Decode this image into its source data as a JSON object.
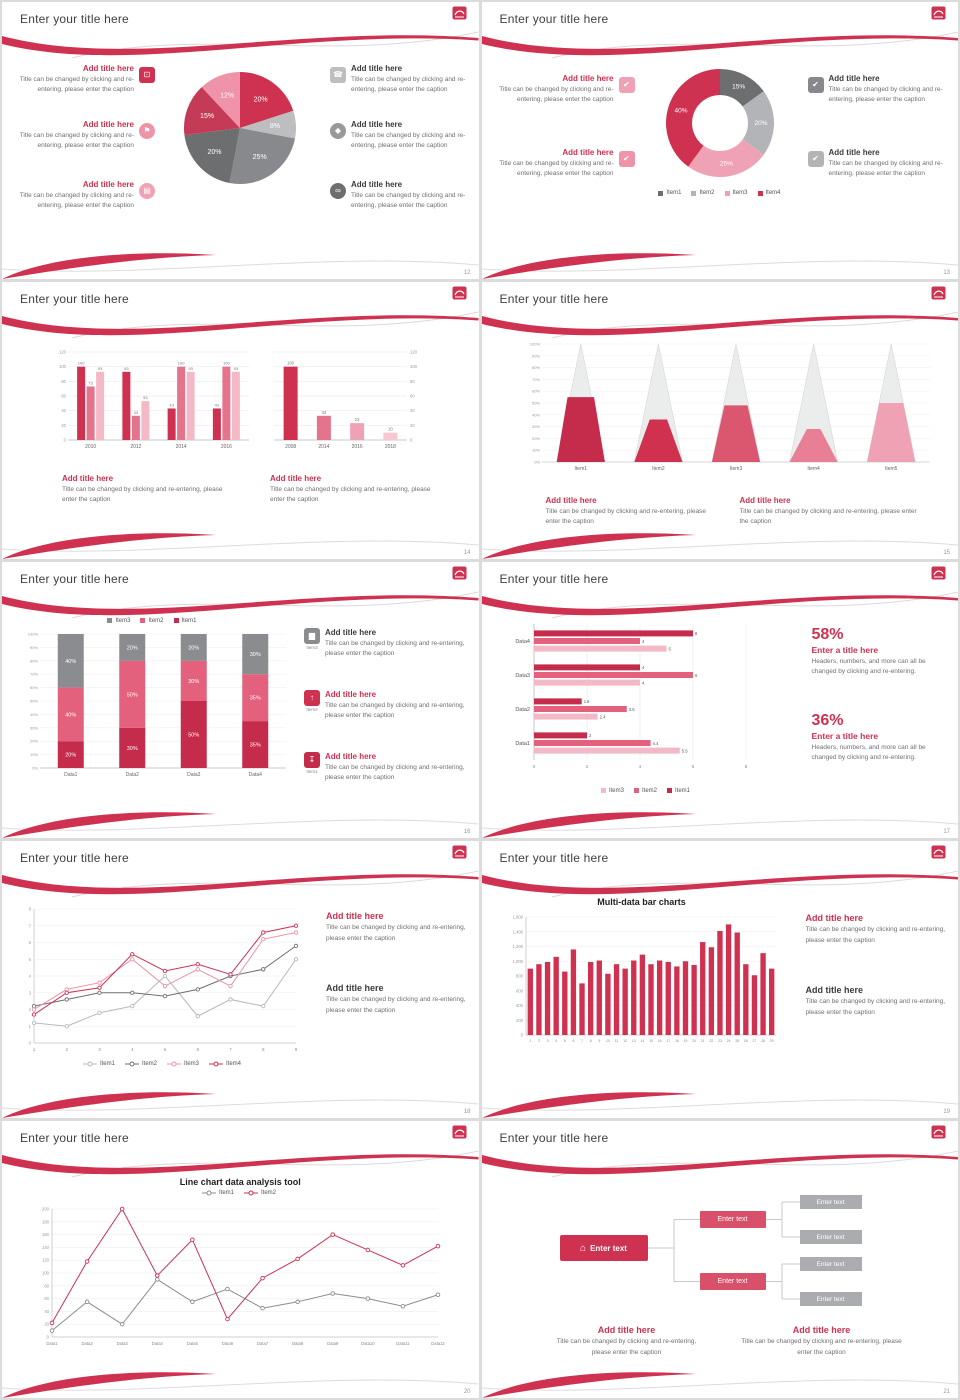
{
  "shared": {
    "slide_title": "Enter your title here",
    "add_title": "Add title here",
    "caption": "Title can be changed by clicking and re-entering, please enter the caption",
    "stat_caption": "Headers, numbers, and more can all be changed by clicking and re-entering.",
    "enter_text": "Enter text",
    "accent_color": "#cf3150"
  },
  "slides": [
    {
      "page": "12",
      "kind": "pie-callouts",
      "chart_data": {
        "type": "pie",
        "labels": [
          "20%",
          "8%",
          "25%",
          "20%",
          "15%",
          "12%"
        ],
        "values": [
          20,
          8,
          25,
          20,
          15,
          12
        ],
        "colors": [
          "#cf3150",
          "#bcbec0",
          "#87898c",
          "#6c6e70",
          "#c43a57",
          "#ee93a8"
        ]
      },
      "callouts": [
        {
          "side": "left",
          "title_color": "#cf3150",
          "icon": "monitor-icon",
          "glyph": "⊡",
          "icon_bg": "#cf3150",
          "icon_shape": "square"
        },
        {
          "side": "left",
          "title_color": "#cf3150",
          "icon": "car-icon",
          "glyph": "⚑",
          "icon_bg": "#ee93a8",
          "icon_shape": "circle"
        },
        {
          "side": "left",
          "title_color": "#cf3150",
          "icon": "book-icon",
          "glyph": "▤",
          "icon_bg": "#f0a2b5",
          "icon_shape": "circle"
        },
        {
          "side": "right",
          "title_color": "#3c3c3c",
          "icon": "phone-icon",
          "glyph": "☎",
          "icon_bg": "#bcbec0",
          "icon_shape": "square"
        },
        {
          "side": "right",
          "title_color": "#3c3c3c",
          "icon": "lock-icon",
          "glyph": "◆",
          "icon_bg": "#97999c",
          "icon_shape": "circle"
        },
        {
          "side": "right",
          "title_color": "#3c3c3c",
          "icon": "bike-icon",
          "glyph": "∞",
          "icon_bg": "#6c6e70",
          "icon_shape": "circle"
        }
      ]
    },
    {
      "page": "13",
      "kind": "donut-callouts",
      "chart_data": {
        "type": "pie",
        "subtype": "donut",
        "labels": [
          "15%",
          "20%",
          "25%",
          "40%"
        ],
        "values": [
          15,
          20,
          25,
          40
        ],
        "colors": [
          "#6c6e70",
          "#b2b4b7",
          "#f0a2b5",
          "#cf3150"
        ],
        "legend": [
          {
            "label": "Item1",
            "color": "#6c6e70"
          },
          {
            "label": "Item2",
            "color": "#b2b4b7"
          },
          {
            "label": "Item3",
            "color": "#f0a2b5"
          },
          {
            "label": "Item4",
            "color": "#cf3150"
          }
        ]
      },
      "callouts": [
        {
          "side": "left",
          "title_color": "#cf3150",
          "icon": "checkbox-icon",
          "glyph": "✔",
          "icon_bg": "#f0a2b5",
          "icon_shape": "square"
        },
        {
          "side": "left",
          "title_color": "#cf3150",
          "icon": "checkbox-icon",
          "glyph": "✔",
          "icon_bg": "#ee93a8",
          "icon_shape": "square"
        },
        {
          "side": "right",
          "title_color": "#3c3c3c",
          "icon": "checkbox-icon",
          "glyph": "✔",
          "icon_bg": "#86888b",
          "icon_shape": "square"
        },
        {
          "side": "right",
          "title_color": "#3c3c3c",
          "icon": "checkbox-icon",
          "glyph": "✔",
          "icon_bg": "#b2b4b7",
          "icon_shape": "square"
        }
      ]
    },
    {
      "page": "14",
      "kind": "dual-bars",
      "chart_data": [
        {
          "type": "bar",
          "categories": [
            "2010",
            "2012",
            "2014",
            "2016"
          ],
          "series": [
            {
              "name": "Series1",
              "color": "#cf3150",
              "values": [
                100,
                93,
                43,
                43
              ]
            },
            {
              "name": "Series2",
              "color": "#e4738c",
              "values": [
                73,
                33,
                100,
                100
              ]
            },
            {
              "name": "Series3",
              "color": "#f3b9c6",
              "values": [
                93,
                53,
                93,
                93
              ]
            }
          ],
          "ylim": [
            0,
            120
          ],
          "yticks": [
            0,
            20,
            40,
            60,
            80,
            100,
            120
          ]
        },
        {
          "type": "bar",
          "categories": [
            "2008",
            "2014",
            "2016",
            "2018"
          ],
          "values": [
            100,
            33,
            23,
            10
          ],
          "colors": [
            "#cf3150",
            "#e4738c",
            "#f0a2b5",
            "#f6c8d2"
          ],
          "ylim": [
            0,
            120
          ],
          "yticks": [
            0,
            20,
            40,
            60,
            80,
            100,
            120
          ]
        }
      ]
    },
    {
      "page": "15",
      "kind": "pyramid",
      "chart_data": {
        "type": "bar",
        "subtype": "pyramid",
        "categories": [
          "Item1",
          "Item2",
          "Item3",
          "Item4",
          "Item5"
        ],
        "values": [
          55,
          36,
          48,
          28,
          50
        ],
        "colors": [
          "#c52b4b",
          "#d0314f",
          "#db566f",
          "#e87f95",
          "#f0a2b5"
        ],
        "ylim": [
          0,
          100
        ]
      }
    },
    {
      "page": "16",
      "kind": "stacked-callouts",
      "chart_data": {
        "type": "bar",
        "subtype": "stacked",
        "categories": [
          "Data1",
          "Data2",
          "Data3",
          "Data4"
        ],
        "series": [
          {
            "name": "Item1",
            "color": "#c52b4b",
            "values": [
              20,
              30,
              50,
              35
            ]
          },
          {
            "name": "Item2",
            "color": "#e4617e",
            "values": [
              40,
              50,
              30,
              35
            ]
          },
          {
            "name": "Item3",
            "color": "#8a8c8f",
            "values": [
              40,
              20,
              20,
              30
            ]
          }
        ],
        "legend_order": [
          "Item3",
          "Item2",
          "Item1"
        ],
        "ylim": [
          0,
          100
        ]
      },
      "callouts": [
        {
          "icon": "bar-chart-icon",
          "glyph": "▆",
          "icon_label": "Item3",
          "icon_bg": "#8a8c8f",
          "title_color": "#3c3c3c"
        },
        {
          "icon": "upload-icon",
          "glyph": "↑",
          "icon_label": "Item2",
          "icon_bg": "#cf3150",
          "title_color": "#cf3150"
        },
        {
          "icon": "download-icon",
          "glyph": "↧",
          "icon_label": "Item1",
          "icon_bg": "#c52b4b",
          "title_color": "#cf3150"
        }
      ]
    },
    {
      "page": "17",
      "kind": "hbar-stats",
      "chart_data": {
        "type": "bar",
        "subtype": "horizontal-grouped",
        "categories": [
          "Data1",
          "Data2",
          "Data3",
          "Data4"
        ],
        "series": [
          {
            "name": "Item1",
            "color": "#c52b4b",
            "values": [
              2,
              1.8,
              4,
              6
            ]
          },
          {
            "name": "Item2",
            "color": "#e4617e",
            "values": [
              4.4,
              3.5,
              6,
              4
            ]
          },
          {
            "name": "Item3",
            "color": "#f3b9c6",
            "values": [
              5.5,
              2.4,
              4,
              5
            ]
          }
        ],
        "xlim": [
          0,
          8
        ],
        "xticks": [
          0,
          2,
          4,
          6,
          8
        ],
        "legend_order": [
          "Item3",
          "Item2",
          "Item1"
        ]
      },
      "stats": [
        {
          "value": "58%",
          "title": "Enter a title here"
        },
        {
          "value": "36%",
          "title": "Enter a title here"
        }
      ]
    },
    {
      "page": "18",
      "kind": "line-callouts",
      "chart_data": {
        "type": "line",
        "x": [
          "1",
          "2",
          "3",
          "4",
          "5",
          "6",
          "7",
          "8",
          "9"
        ],
        "series": [
          {
            "name": "Item1",
            "color": "#b7b9bb",
            "values": [
              1.2,
              1,
              1.8,
              2.2,
              4,
              1.6,
              2.6,
              2.2,
              5
            ]
          },
          {
            "name": "Item2",
            "color": "#6d6e71",
            "values": [
              2.2,
              2.6,
              3,
              3,
              2.8,
              3.2,
              4,
              4.4,
              5.8
            ]
          },
          {
            "name": "Item3",
            "color": "#ee93a8",
            "values": [
              2,
              3.2,
              3.6,
              5,
              3.4,
              4.4,
              3.4,
              6.2,
              6.6
            ]
          },
          {
            "name": "Item4",
            "color": "#cf3150",
            "values": [
              1.7,
              3,
              3.3,
              5.3,
              4.3,
              4.7,
              4.1,
              6.6,
              7
            ]
          }
        ],
        "ylim": [
          0,
          8
        ],
        "yticks": [
          0,
          1,
          2,
          3,
          4,
          5,
          6,
          7,
          8
        ]
      },
      "callouts": [
        {
          "title_color": "#cf3150"
        },
        {
          "title_color": "#3c3c3c"
        }
      ]
    },
    {
      "page": "19",
      "kind": "multibar-callouts",
      "chart_data": {
        "type": "bar",
        "title": "Multi-data bar charts",
        "x": [
          "1",
          "2",
          "3",
          "4",
          "5",
          "6",
          "7",
          "8",
          "9",
          "10",
          "11",
          "12",
          "13",
          "14",
          "15",
          "16",
          "17",
          "18",
          "19",
          "20",
          "21",
          "22",
          "23",
          "24",
          "25",
          "26",
          "27",
          "28",
          "29"
        ],
        "values": [
          900,
          960,
          990,
          1060,
          860,
          1160,
          700,
          990,
          1010,
          830,
          960,
          900,
          1010,
          1090,
          960,
          1010,
          990,
          930,
          1000,
          950,
          1260,
          1190,
          1410,
          1500,
          1390,
          960,
          810,
          1110,
          900
        ],
        "color": "#cf3150",
        "ylim": [
          0,
          1600
        ],
        "ytick_labels": [
          "0",
          "200",
          "400",
          "600",
          "800",
          "1,000",
          "1,200",
          "1,400",
          "1,600"
        ]
      },
      "callouts": [
        {
          "title_color": "#cf3150"
        },
        {
          "title_color": "#3c3c3c"
        }
      ]
    },
    {
      "page": "20",
      "kind": "line-tool",
      "chart_data": {
        "type": "line",
        "title": "Line chart data analysis tool",
        "x": [
          "Data1",
          "Data2",
          "Data3",
          "Data4",
          "Data5",
          "Data6",
          "Data7",
          "Data8",
          "Data9",
          "Data10",
          "Data11",
          "Data12"
        ],
        "series": [
          {
            "name": "Item1",
            "color": "#8a8c8f",
            "values": [
              10,
              55,
              20,
              90,
              55,
              75,
              45,
              55,
              68,
              60,
              48,
              66
            ]
          },
          {
            "name": "Item2",
            "color": "#cf3150",
            "values": [
              22,
              118,
              200,
              96,
              152,
              28,
              92,
              122,
              160,
              136,
              112,
              142
            ]
          }
        ],
        "ylim": [
          0,
          200
        ],
        "ytick_step": 20
      }
    },
    {
      "page": "21",
      "kind": "diagram",
      "diagram": {
        "root_label": "Enter text",
        "root_icon": "house-icon",
        "root_glyph": "⌂",
        "level2_labels": [
          "Enter text",
          "Enter text"
        ],
        "level3_labels": [
          "Enter text",
          "Enter text",
          "Enter text",
          "Enter text"
        ]
      }
    }
  ]
}
